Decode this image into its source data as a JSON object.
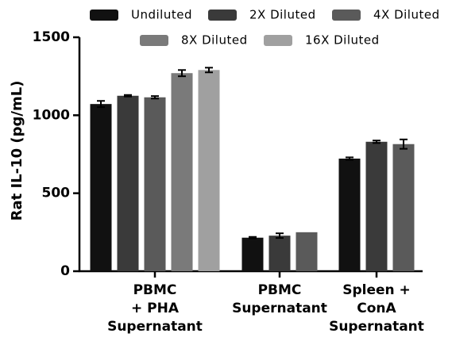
{
  "chart_data": {
    "type": "bar",
    "y_label": "Rat IL-10 (pg/mL)",
    "categories": [
      [
        "PBMC",
        "+ PHA",
        "Supernatant"
      ],
      [
        "PBMC",
        "Supernatant"
      ],
      [
        "Spleen +",
        "ConA",
        "Supernatant"
      ]
    ],
    "series": [
      {
        "name": "Undiluted",
        "color": "#111111",
        "values": [
          1072,
          215,
          722
        ],
        "errors": [
          20,
          5,
          8
        ]
      },
      {
        "name": "2X Diluted",
        "color": "#3a3a3a",
        "values": [
          1125,
          228,
          830
        ],
        "errors": [
          5,
          15,
          8
        ]
      },
      {
        "name": "4X Diluted",
        "color": "#5a5a5a",
        "values": [
          1115,
          250,
          815
        ],
        "errors": [
          8,
          null,
          30
        ]
      },
      {
        "name": "8X Diluted",
        "color": "#7a7a7a",
        "values": [
          1270,
          null,
          null
        ],
        "errors": [
          20,
          null,
          null
        ]
      },
      {
        "name": "16X Diluted",
        "color": "#a0a0a0",
        "values": [
          1290,
          null,
          null
        ],
        "errors": [
          15,
          null,
          null
        ]
      }
    ],
    "ylim": [
      0,
      1500
    ],
    "yticks": [
      0,
      500,
      1000,
      1500
    ]
  }
}
